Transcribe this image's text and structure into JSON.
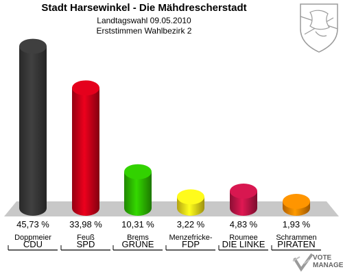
{
  "header": {
    "title": "Stadt Harsewinkel - Die Mähdrescherstadt",
    "subtitle1": "Landtagswahl 09.05.2010",
    "subtitle2": "Erststimmen Wahlbezirk 2"
  },
  "logo": {
    "line1": "VOTE",
    "line2": "MANAGER"
  },
  "chart_data": {
    "type": "bar",
    "title": "Stadt Harsewinkel - Die Mähdrescherstadt",
    "subtitle": "Landtagswahl 09.05.2010 · Erststimmen Wahlbezirk 2",
    "unit": "%",
    "ylim": [
      0,
      50
    ],
    "grid": false,
    "categories": [
      "CDU",
      "SPD",
      "GRÜNE",
      "FDP",
      "DIE LINKE",
      "PIRATEN"
    ],
    "candidates": [
      "Doppmeier",
      "Feuß",
      "Brems",
      "Menzefricke-",
      "Roumee",
      "Schrammen"
    ],
    "values": [
      45.73,
      33.98,
      10.31,
      3.22,
      4.83,
      1.93
    ],
    "value_labels": [
      "45,73 %",
      "33,98 %",
      "10,31 %",
      "3,22 %",
      "4,83 %",
      "1,93 %"
    ],
    "colors": [
      "#3a3a3a",
      "#d4001a",
      "#2ec200",
      "#ffe81a",
      "#c8154a",
      "#ff8a00"
    ]
  }
}
